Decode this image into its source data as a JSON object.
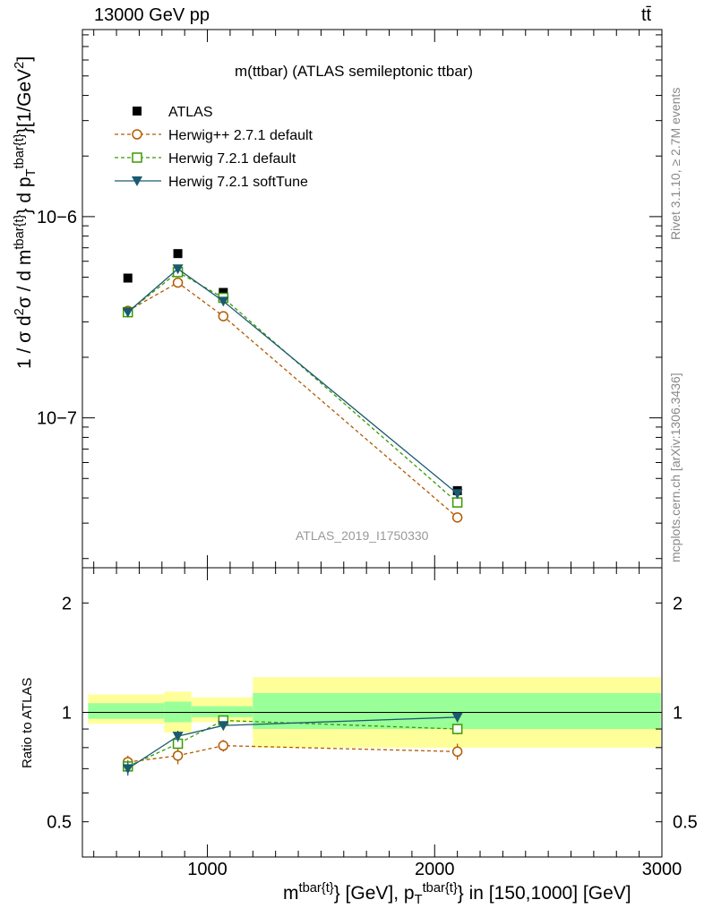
{
  "header": {
    "left": "13000 GeV pp",
    "right": "tt̄"
  },
  "side": {
    "rivet": "Rivet 3.1.10, ≥ 2.7M events",
    "source": "mcplots.cern.ch [arXiv:1306.3436]"
  },
  "axis_labels": {
    "ylabel_main": "1 / σ d²σ / d m^{tbar{t}} d p_T^{tbar{t}} [1/GeV²]",
    "ylabel_main_parts": {
      "prefix": "1 / σ d",
      "sq1": "2",
      "mid": "σ / d m",
      "sup1": "tbar{t}",
      "mid2": "} d p",
      "sub2": "T",
      "sup2": "tbar{t}",
      "suffix": "}[1/GeV",
      "sq2": "2",
      "end": "]"
    },
    "ylabel_ratio": "Ratio to ATLAS",
    "xlabel_parts": {
      "a": "m",
      "a_sup": "tbar{t}",
      "b": "} [GeV], p",
      "b_sub": "T",
      "b_sup": "tbar{t}",
      "c": "} in [150,1000] [GeV]"
    }
  },
  "colors": {
    "data": "#000000",
    "herwigpp": "#b35a00",
    "herwig721": "#3a9a00",
    "softtune": "#1a5a70",
    "band_outer": "#ffff99",
    "band_inner": "#99ff99"
  },
  "chart_data": [
    {
      "type": "scatter",
      "panel": "main",
      "title": "m(ttbar) (ATLAS semileptonic ttbar)",
      "watermark": "ATLAS_2019_I1750330",
      "yscale": "log",
      "xlim": [
        450,
        3000
      ],
      "ylim": [
        1.8e-08,
        8.5e-06
      ],
      "yticks_major_labels": [
        "10−6",
        "10−7"
      ],
      "yticks_major_values": [
        1e-06,
        1e-07
      ],
      "legend_position": "top-left",
      "series": [
        {
          "name": "ATLAS",
          "marker": "filled-square",
          "x": [
            650,
            870,
            1070,
            2100
          ],
          "y": [
            4.95e-07,
            6.55e-07,
            4.2e-07,
            4.35e-08
          ]
        },
        {
          "name": "Herwig++ 2.7.1 default",
          "marker": "open-circle",
          "line": "dashed",
          "x": [
            650,
            870,
            1070,
            2100
          ],
          "y": [
            3.4e-07,
            4.7e-07,
            3.2e-07,
            3.2e-08
          ]
        },
        {
          "name": "Herwig 7.2.1 default",
          "marker": "open-square",
          "line": "dashed",
          "x": [
            650,
            870,
            1070,
            2100
          ],
          "y": [
            3.35e-07,
            5.3e-07,
            3.95e-07,
            3.8e-08
          ]
        },
        {
          "name": "Herwig 7.2.1 softTune",
          "marker": "filled-triangle-down",
          "line": "solid",
          "x": [
            650,
            870,
            1070,
            2100
          ],
          "y": [
            3.35e-07,
            5.5e-07,
            3.8e-07,
            4.2e-08
          ]
        }
      ]
    },
    {
      "type": "scatter",
      "panel": "ratio",
      "ylabel": "Ratio to ATLAS",
      "yscale": "log",
      "xlim": [
        450,
        3000
      ],
      "ylim": [
        0.4,
        2.5
      ],
      "yticks": [
        0.5,
        1,
        2
      ],
      "yticks_labels": [
        "0.5",
        "1",
        "2"
      ],
      "xticks": [
        1000,
        2000,
        3000
      ],
      "xticks_labels": [
        "1000",
        "2000",
        "3000"
      ],
      "uncertainty_bands": [
        {
          "x0": 475,
          "x1": 810,
          "outer": [
            0.93,
            1.12
          ],
          "inner": [
            0.96,
            1.06
          ]
        },
        {
          "x0": 810,
          "x1": 930,
          "outer": [
            0.88,
            1.14
          ],
          "inner": [
            0.94,
            1.07
          ]
        },
        {
          "x0": 930,
          "x1": 1200,
          "outer": [
            0.94,
            1.1
          ],
          "inner": [
            0.97,
            1.04
          ]
        },
        {
          "x0": 1200,
          "x1": 2995,
          "outer": [
            0.8,
            1.25
          ],
          "inner": [
            0.9,
            1.13
          ]
        }
      ],
      "series": [
        {
          "name": "Herwig++ 2.7.1 default",
          "x": [
            650,
            870,
            1070,
            2100
          ],
          "y": [
            0.73,
            0.76,
            0.81,
            0.78
          ],
          "err": [
            0.03,
            0.04,
            0.03,
            0.04
          ]
        },
        {
          "name": "Herwig 7.2.1 default",
          "x": [
            650,
            870,
            1070,
            2100
          ],
          "y": [
            0.71,
            0.82,
            0.95,
            0.9
          ],
          "err": [
            0.03,
            0.03,
            0.02,
            0.03
          ]
        },
        {
          "name": "Herwig 7.2.1 softTune",
          "x": [
            650,
            870,
            1070,
            2100
          ],
          "y": [
            0.7,
            0.86,
            0.92,
            0.97
          ],
          "err": [
            0.03,
            0.03,
            0.02,
            0.03
          ]
        }
      ]
    }
  ]
}
